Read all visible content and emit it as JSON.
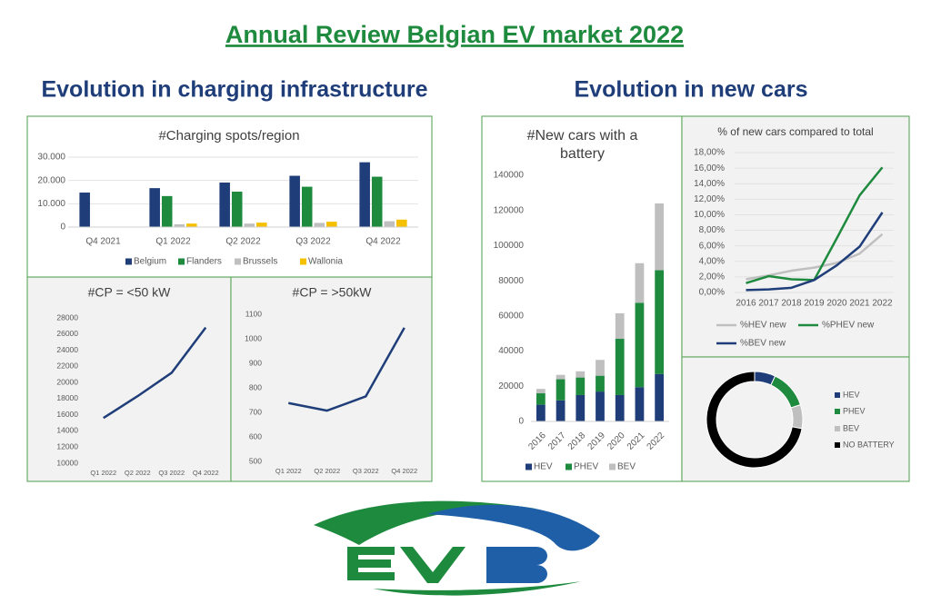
{
  "title": "Annual Review Belgian EV market 2022",
  "left_heading": "Evolution in charging infrastructure",
  "right_heading": "Evolution in new cars",
  "chart_data": [
    {
      "type": "bar",
      "title": "#Charging spots/region",
      "categories": [
        "Q4 2021",
        "Q1 2022",
        "Q2 2022",
        "Q3 2022",
        "Q4 2022"
      ],
      "series": [
        {
          "name": "Belgium",
          "color": "#1f3e79",
          "values": [
            14800,
            16700,
            19100,
            22000,
            27800
          ]
        },
        {
          "name": "Flanders",
          "color": "#1e8a3e",
          "values": [
            null,
            13300,
            15200,
            17300,
            21600
          ]
        },
        {
          "name": "Brussels",
          "color": "#bfbfbf",
          "values": [
            null,
            1200,
            1500,
            1800,
            2500
          ]
        },
        {
          "name": "Wallonia",
          "color": "#f5c000",
          "values": [
            null,
            1500,
            1900,
            2300,
            3200
          ]
        }
      ],
      "ylim": [
        0,
        30000
      ],
      "yticks": [
        0,
        {
          "value": 10000,
          "label": "10.000"
        },
        {
          "value": 20000,
          "label": "20.000"
        },
        {
          "value": 30000,
          "label": "30.000"
        }
      ],
      "grid": true,
      "legend": "bottom"
    },
    {
      "type": "line",
      "title": "#CP = <50 kW",
      "categories": [
        "Q1 2022",
        "Q2 2022",
        "Q3 2022",
        "Q4 2022"
      ],
      "values": [
        15600,
        18300,
        21200,
        26800
      ],
      "color": "#1f3e79",
      "ylim": [
        10000,
        28000
      ],
      "yticks": [
        10000,
        12000,
        14000,
        16000,
        18000,
        20000,
        22000,
        24000,
        26000,
        28000
      ],
      "grid": false
    },
    {
      "type": "line",
      "title": "#CP = >50kW",
      "categories": [
        "Q1 2022",
        "Q2 2022",
        "Q3 2022",
        "Q4 2022"
      ],
      "values": [
        738,
        707,
        765,
        1045
      ],
      "color": "#1f3e79",
      "ylim": [
        500,
        1100
      ],
      "yticks": [
        500,
        600,
        700,
        800,
        900,
        1000,
        1100
      ],
      "grid": false
    },
    {
      "type": "bar",
      "stacked": true,
      "title": "#New cars with a battery",
      "categories": [
        "2016",
        "2017",
        "2018",
        "2019",
        "2020",
        "2021",
        "2022"
      ],
      "series": [
        {
          "name": "HEV",
          "color": "#1f3e79",
          "values": [
            9500,
            12000,
            15000,
            17000,
            15000,
            19500,
            27000
          ]
        },
        {
          "name": "PHEV",
          "color": "#1e8a3e",
          "values": [
            6500,
            12000,
            10000,
            9000,
            32000,
            48000,
            59000
          ]
        },
        {
          "name": "BEV",
          "color": "#bfbfbf",
          "values": [
            2500,
            2500,
            3500,
            9000,
            14500,
            22500,
            38000
          ]
        }
      ],
      "ylim": [
        0,
        140000
      ],
      "yticks": [
        0,
        20000,
        40000,
        60000,
        80000,
        100000,
        120000,
        140000
      ],
      "grid": false,
      "legend": "bottom"
    },
    {
      "type": "line",
      "title": "% of new cars compared to total",
      "categories": [
        "2016",
        "2017",
        "2018",
        "2019",
        "2020",
        "2021",
        "2022"
      ],
      "series": [
        {
          "name": "%HEV new",
          "color": "#bfbfbf",
          "values": [
            1.7,
            2.2,
            2.8,
            3.2,
            3.8,
            5.0,
            7.5
          ]
        },
        {
          "name": "%PHEV new",
          "color": "#1e8a3e",
          "values": [
            1.2,
            2.1,
            1.7,
            1.6,
            7.0,
            12.5,
            16.1
          ]
        },
        {
          "name": "%BEV new",
          "color": "#1f3e79",
          "values": [
            0.3,
            0.4,
            0.6,
            1.6,
            3.5,
            5.9,
            10.3
          ]
        }
      ],
      "ylim": [
        0,
        18
      ],
      "yticks": [
        {
          "value": 0,
          "label": "0,00%"
        },
        {
          "value": 2,
          "label": "2,00%"
        },
        {
          "value": 4,
          "label": "4,00%"
        },
        {
          "value": 6,
          "label": "6,00%"
        },
        {
          "value": 8,
          "label": "8,00%"
        },
        {
          "value": 10,
          "label": "10,00%"
        },
        {
          "value": 12,
          "label": "12,00%"
        },
        {
          "value": 14,
          "label": "14,00%"
        },
        {
          "value": 16,
          "label": "16,00%"
        },
        {
          "value": 18,
          "label": "18,00%"
        }
      ],
      "grid": true,
      "legend": "bottom"
    },
    {
      "type": "donut",
      "categories": [
        "HEV",
        "PHEV",
        "BEV",
        "NO BATTERY"
      ],
      "values": [
        7,
        13,
        8,
        72
      ],
      "colors": [
        "#1f3e79",
        "#1e8a3e",
        "#bfbfbf",
        "#000000"
      ],
      "legend": "right"
    }
  ]
}
